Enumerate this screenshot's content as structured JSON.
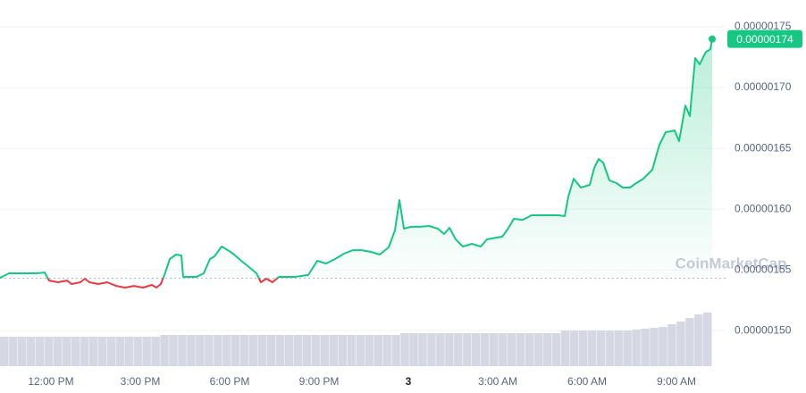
{
  "chart_data": {
    "type": "line",
    "x": [
      -1.71,
      -1.41,
      -1.11,
      -0.81,
      -0.51,
      -0.21,
      -0.06,
      0.24,
      0.54,
      0.69,
      0.99,
      1.14,
      1.29,
      1.59,
      1.89,
      2.19,
      2.49,
      2.79,
      3.09,
      3.39,
      3.54,
      3.69,
      3.84,
      3.99,
      4.2,
      4.38,
      4.44,
      4.65,
      4.89,
      5.13,
      5.34,
      5.49,
      5.73,
      5.94,
      6.15,
      6.39,
      6.69,
      6.9,
      7.05,
      7.23,
      7.44,
      7.65,
      7.89,
      8.19,
      8.64,
      8.94,
      9.24,
      9.54,
      9.84,
      10.14,
      10.44,
      10.74,
      11.04,
      11.34,
      11.55,
      11.7,
      11.85,
      12.09,
      12.39,
      12.69,
      12.99,
      13.2,
      13.38,
      13.59,
      13.83,
      14.13,
      14.43,
      14.64,
      14.94,
      15.15,
      15.33,
      15.54,
      15.84,
      16.14,
      16.44,
      16.74,
      17.04,
      17.25,
      17.37,
      17.55,
      17.79,
      18.09,
      18.24,
      18.39,
      18.54,
      18.75,
      18.99,
      19.2,
      19.44,
      19.65,
      19.89,
      20.19,
      20.43,
      20.64,
      20.94,
      21.09,
      21.3,
      21.45,
      21.63,
      21.78,
      21.99,
      22.14,
      22.2
    ],
    "series": [
      {
        "color": "#16c784",
        "below_color": "#ea3943",
        "values": [
          1.5434e-06,
          1.5471e-06,
          1.5471e-06,
          1.5471e-06,
          1.5471e-06,
          1.5478e-06,
          1.5412e-06,
          1.5398e-06,
          1.5412e-06,
          1.5383e-06,
          1.5398e-06,
          1.5427e-06,
          1.5398e-06,
          1.5383e-06,
          1.5398e-06,
          1.5368e-06,
          1.5354e-06,
          1.5368e-06,
          1.5354e-06,
          1.5376e-06,
          1.5354e-06,
          1.5383e-06,
          1.5478e-06,
          1.5589e-06,
          1.5626e-06,
          1.5618e-06,
          1.5442e-06,
          1.5442e-06,
          1.5442e-06,
          1.5471e-06,
          1.5589e-06,
          1.5611e-06,
          1.5692e-06,
          1.5662e-06,
          1.5626e-06,
          1.5574e-06,
          1.5515e-06,
          1.5471e-06,
          1.5398e-06,
          1.5427e-06,
          1.5398e-06,
          1.5442e-06,
          1.5442e-06,
          1.5442e-06,
          1.5457e-06,
          1.5574e-06,
          1.5552e-06,
          1.5589e-06,
          1.5633e-06,
          1.5662e-06,
          1.5662e-06,
          1.5648e-06,
          1.5626e-06,
          1.5685e-06,
          1.5824e-06,
          1.6074e-06,
          1.5839e-06,
          1.5854e-06,
          1.5854e-06,
          1.5861e-06,
          1.5839e-06,
          1.5795e-06,
          1.5846e-06,
          1.5751e-06,
          1.5692e-06,
          1.5714e-06,
          1.5692e-06,
          1.5751e-06,
          1.5765e-06,
          1.5773e-06,
          1.5832e-06,
          1.592e-06,
          1.5912e-06,
          1.5949e-06,
          1.5949e-06,
          1.5949e-06,
          1.5949e-06,
          1.5942e-06,
          1.6103e-06,
          1.625e-06,
          1.6177e-06,
          1.6199e-06,
          1.6339e-06,
          1.6412e-06,
          1.6383e-06,
          1.6236e-06,
          1.6214e-06,
          1.6177e-06,
          1.6177e-06,
          1.6214e-06,
          1.625e-06,
          1.6324e-06,
          1.653e-06,
          1.6633e-06,
          1.6647e-06,
          1.6559e-06,
          1.6853e-06,
          1.6765e-06,
          1.7243e-06,
          1.7191e-06,
          1.7294e-06,
          1.7316e-06,
          1.74e-06
        ]
      }
    ],
    "baseline": 1.543e-06,
    "current_price": {
      "value": 1.74e-06,
      "label": "0.00000174"
    },
    "xlim": [
      -1.71,
      22.65
    ],
    "xticks": [
      {
        "value": 0,
        "label": "12:00 PM"
      },
      {
        "value": 3,
        "label": "3:00 PM"
      },
      {
        "value": 6,
        "label": "6:00 PM"
      },
      {
        "value": 9,
        "label": "9:00 PM"
      },
      {
        "value": 12,
        "label": "3"
      },
      {
        "value": 15,
        "label": "3:00 AM"
      },
      {
        "value": 18,
        "label": "6:00 AM"
      },
      {
        "value": 21,
        "label": "9:00 AM"
      }
    ],
    "ylim": [
      1.4692e-06,
      1.7721e-06
    ],
    "yticks": [
      {
        "value": 1.5e-06,
        "label": "0.00000150"
      },
      {
        "value": 1.55e-06,
        "label": "0.00000155"
      },
      {
        "value": 1.6e-06,
        "label": "0.00000160"
      },
      {
        "value": 1.65e-06,
        "label": "0.00000165"
      },
      {
        "value": 1.7e-06,
        "label": "0.00000170"
      },
      {
        "value": 1.75e-06,
        "label": "0.00000175"
      }
    ],
    "grid": true,
    "volume": {
      "color": "#d5d8e2",
      "values": [
        33,
        33,
        33,
        33,
        33,
        33,
        33,
        33,
        33,
        33,
        33,
        33,
        33,
        33,
        33,
        33,
        33,
        33,
        35,
        35,
        35,
        35,
        35,
        35,
        35,
        35,
        35,
        35,
        35,
        35,
        35,
        35,
        35,
        35,
        35,
        35,
        35,
        35,
        35,
        35,
        35,
        35,
        35,
        35,
        35,
        37,
        37,
        37,
        37,
        37,
        37,
        37,
        37,
        37,
        37,
        37,
        37,
        37,
        37,
        37,
        37,
        37,
        37,
        40,
        40,
        40,
        40,
        40,
        40,
        40,
        40,
        41,
        42,
        43,
        44,
        47,
        50,
        54,
        58,
        60
      ]
    },
    "watermark": "CoinMarketCap"
  }
}
